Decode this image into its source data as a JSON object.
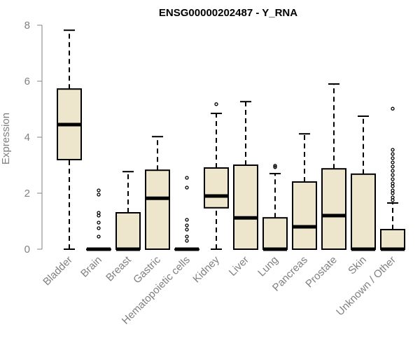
{
  "chart_data": {
    "type": "boxplot",
    "title": "ENSG00000202487 - Y_RNA",
    "ylabel": "Expression",
    "xlabel": "",
    "ylim": [
      0,
      8
    ],
    "yticks": [
      "0",
      "2",
      "4",
      "6",
      "8"
    ],
    "grid": false,
    "legend": "none",
    "box_fill": "#ede6cc",
    "categories": [
      "Bladder",
      "Brain",
      "Breast",
      "Gastric",
      "Hematopoietic cells",
      "Kidney",
      "Liver",
      "Lung",
      "Pancreas",
      "Prostate",
      "Skin",
      "Unknown / Other"
    ],
    "boxes": [
      {
        "min": 0,
        "q1": 3.2,
        "median": 4.45,
        "q3": 5.72,
        "max": 7.82,
        "outliers": []
      },
      {
        "min": 0,
        "q1": 0,
        "median": 0,
        "q3": 0,
        "max": 0,
        "outliers": [
          0.45,
          0.75,
          0.95,
          1.2,
          1.3,
          1.95,
          2.1
        ]
      },
      {
        "min": 0,
        "q1": 0,
        "median": 0,
        "q3": 1.3,
        "max": 2.77,
        "outliers": []
      },
      {
        "min": 0,
        "q1": 0,
        "median": 1.82,
        "q3": 2.82,
        "max": 4.02,
        "outliers": []
      },
      {
        "min": 0,
        "q1": 0,
        "median": 0,
        "q3": 0,
        "max": 0,
        "outliers": [
          0.3,
          0.45,
          0.7,
          0.85,
          1.05,
          2.2,
          2.55
        ]
      },
      {
        "min": 0,
        "q1": 1.48,
        "median": 1.9,
        "q3": 2.9,
        "max": 4.85,
        "outliers": [
          5.18
        ]
      },
      {
        "min": 0,
        "q1": 0,
        "median": 1.12,
        "q3": 3.0,
        "max": 5.27,
        "outliers": []
      },
      {
        "min": 0,
        "q1": 0,
        "median": 0,
        "q3": 1.12,
        "max": 2.7,
        "outliers": [
          2.93,
          2.98
        ]
      },
      {
        "min": 0,
        "q1": 0,
        "median": 0.8,
        "q3": 2.4,
        "max": 4.12,
        "outliers": []
      },
      {
        "min": 0,
        "q1": 0,
        "median": 1.2,
        "q3": 2.87,
        "max": 5.9,
        "outliers": []
      },
      {
        "min": 0,
        "q1": 0,
        "median": 0,
        "q3": 2.68,
        "max": 4.75,
        "outliers": []
      },
      {
        "min": 0,
        "q1": 0,
        "median": 0,
        "q3": 0.7,
        "max": 1.65,
        "outliers": [
          1.75,
          1.85,
          2.0,
          2.1,
          2.25,
          2.35,
          2.5,
          2.65,
          2.8,
          2.95,
          3.1,
          3.25,
          3.4,
          3.55,
          5.02
        ]
      }
    ]
  }
}
